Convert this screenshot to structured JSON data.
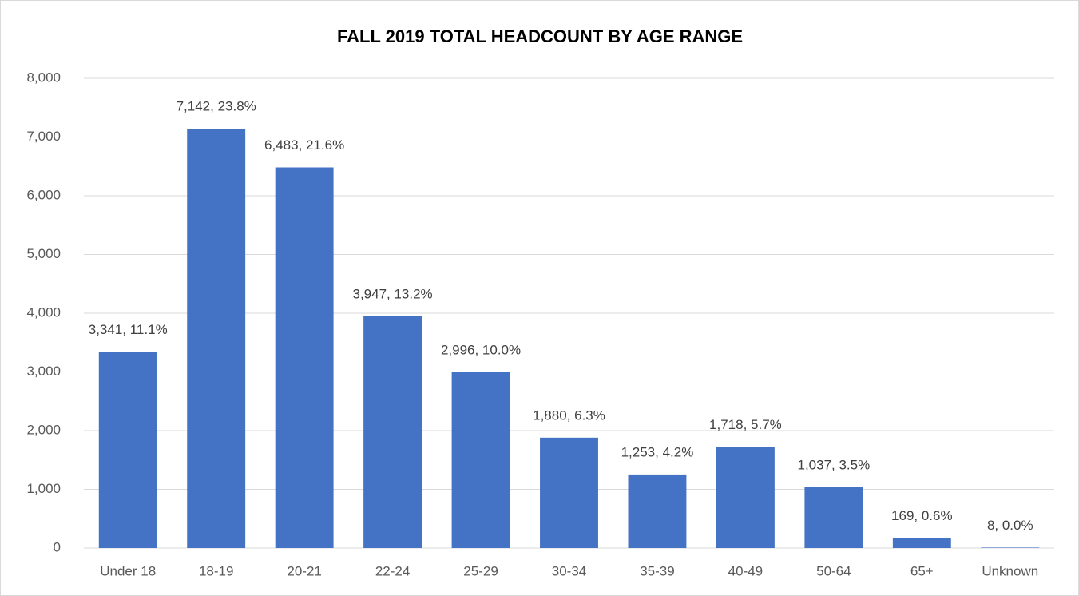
{
  "chart_data": {
    "type": "bar",
    "title": "FALL 2019 TOTAL HEADCOUNT BY AGE RANGE",
    "categories": [
      "Under 18",
      "18-19",
      "20-21",
      "22-24",
      "25-29",
      "30-34",
      "35-39",
      "40-49",
      "50-64",
      "65+",
      "Unknown"
    ],
    "values": [
      3341,
      7142,
      6483,
      3947,
      2996,
      1880,
      1253,
      1718,
      1037,
      169,
      8
    ],
    "value_labels": [
      "3,341, 11.1%",
      "7,142, 23.8%",
      "6,483, 21.6%",
      "3,947, 13.2%",
      "2,996, 10.0%",
      "1,880, 6.3%",
      "1,253, 4.2%",
      "1,718, 5.7%",
      "1,037, 3.5%",
      "169, 0.6%",
      "8, 0.0%"
    ],
    "color": "#4472c4",
    "ylim": [
      0,
      8000
    ],
    "yticks": [
      0,
      {
        "value": 1000,
        "label": "1,000"
      },
      {
        "value": 2000,
        "label": "2,000"
      },
      {
        "value": 3000,
        "label": "3,000"
      },
      {
        "value": 4000,
        "label": "4,000"
      },
      {
        "value": 5000,
        "label": "5,000"
      },
      {
        "value": 6000,
        "label": "6,000"
      },
      {
        "value": 7000,
        "label": "7,000"
      },
      {
        "value": 8000,
        "label": "8,000"
      }
    ],
    "grid": true
  }
}
